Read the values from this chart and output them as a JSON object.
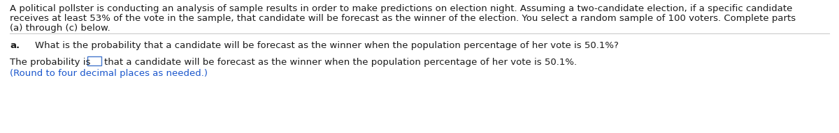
{
  "bg_color": "#ffffff",
  "line_color": "#cccccc",
  "text_color": "#1a1a1a",
  "blue_color": "#1a56cc",
  "bold_a": "a.",
  "para_line1": "A political pollster is conducting an analysis of sample results in order to make predictions on election night. Assuming a two-candidate election, if a specific candidate",
  "para_line2": "receives at least 53% of the vote in the sample, that candidate will be forecast as the winner of the election. You select a random sample of 100 voters. Complete parts",
  "para_line3": "(a) through (c) below.",
  "question": "What is the probability that a candidate will be forecast as the winner when the population percentage of her vote is 50.1%?",
  "answer_prefix": "The probability is ",
  "answer_suffix": "that a candidate will be forecast as the winner when the population percentage of her vote is 50.1%.",
  "note": "(Round to four decimal places as needed.)",
  "font_size": 9.5
}
